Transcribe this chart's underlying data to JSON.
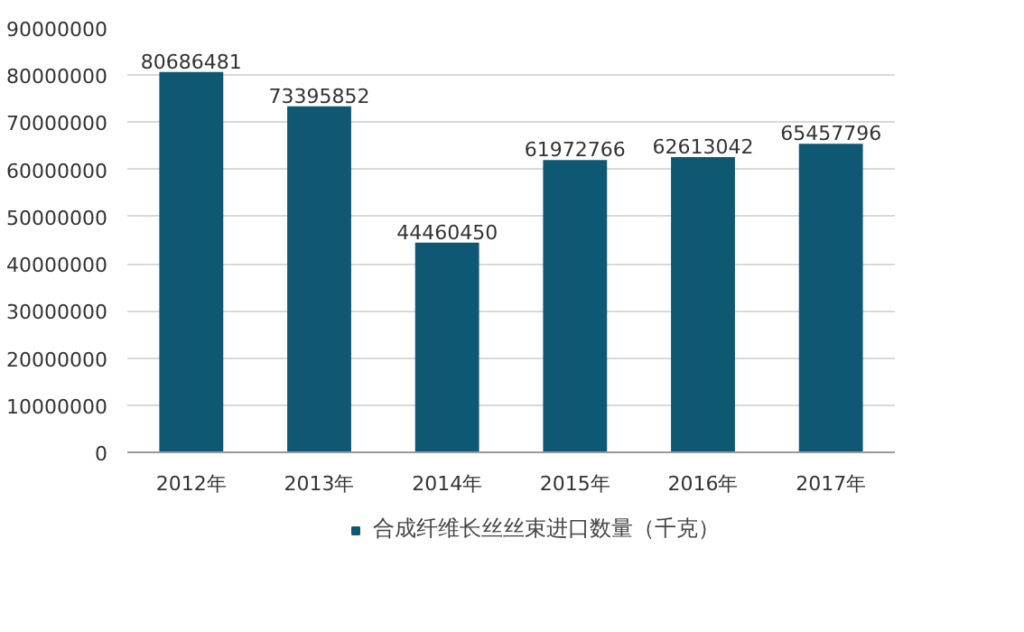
{
  "chart_data": {
    "type": "bar",
    "categories": [
      "2012年",
      "2013年",
      "2014年",
      "2015年",
      "2016年",
      "2017年"
    ],
    "series": [
      {
        "name": "合成纤维长丝丝束进口数量（千克）",
        "color": "#0f5873",
        "values": [
          80686481,
          73395852,
          44460450,
          61972766,
          62613042,
          65457796
        ]
      }
    ],
    "ylim": [
      0,
      90000000
    ],
    "yticks": [
      0,
      10000000,
      20000000,
      30000000,
      40000000,
      50000000,
      60000000,
      70000000,
      80000000,
      90000000
    ],
    "grid": "y",
    "legend": "bottom",
    "data_labels": true
  }
}
